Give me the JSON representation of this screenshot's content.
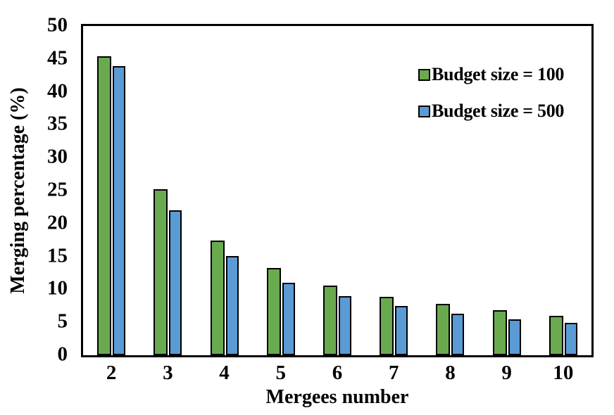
{
  "chart_data": {
    "type": "bar",
    "title": "",
    "xlabel": "Mergees number",
    "ylabel": "Merging percentage (%)",
    "categories": [
      "2",
      "3",
      "4",
      "5",
      "6",
      "7",
      "8",
      "9",
      "10"
    ],
    "series": [
      {
        "name": "Budget size = 100",
        "color": "#6aaa4f",
        "values": [
          45.4,
          25.2,
          17.4,
          13.2,
          10.6,
          8.9,
          7.8,
          6.8,
          6.0
        ]
      },
      {
        "name": "Budget size = 500",
        "color": "#5b9bd5",
        "values": [
          43.9,
          22.0,
          15.1,
          11.0,
          9.0,
          7.5,
          6.3,
          5.5,
          4.9
        ]
      }
    ],
    "ylim": [
      0,
      50
    ],
    "yticks": [
      0,
      5,
      10,
      15,
      20,
      25,
      30,
      35,
      40,
      45,
      50
    ],
    "grid": false,
    "legend_position": "upper-right-inside",
    "bar_border_color": "#000000",
    "axis_border_color": "#000000",
    "background_color": "#ffffff"
  }
}
